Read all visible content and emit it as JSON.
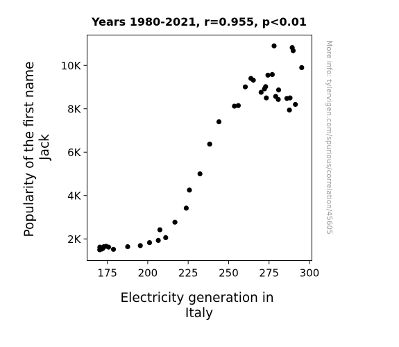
{
  "chart_data": {
    "type": "scatter",
    "title": "Years 1980-2021, r=0.955, p<0.01",
    "xlabel": [
      "Electricity generation in",
      "Italy"
    ],
    "ylabel": [
      "Popularity of the first name",
      "Jack"
    ],
    "watermark": "More info: tylervigen.com/spurious/correlation/45605",
    "xlim": [
      162.5,
      301.5
    ],
    "ylim": [
      1000,
      11400
    ],
    "x_ticks": [
      175,
      200,
      225,
      250,
      275,
      300
    ],
    "x_tick_labels": [
      "175",
      "200",
      "225",
      "250",
      "275",
      "300"
    ],
    "y_ticks": [
      2000,
      4000,
      6000,
      8000,
      10000
    ],
    "y_tick_labels": [
      "2K",
      "4K",
      "6K",
      "8K",
      "10K"
    ],
    "grid": false,
    "marker_color": "#000000",
    "points": [
      [
        170.3,
        1500
      ],
      [
        170.4,
        1620
      ],
      [
        171.5,
        1530
      ],
      [
        172.2,
        1560
      ],
      [
        172.8,
        1640
      ],
      [
        174.3,
        1660
      ],
      [
        175.8,
        1620
      ],
      [
        178.8,
        1520
      ],
      [
        187.6,
        1640
      ],
      [
        195.4,
        1690
      ],
      [
        201.1,
        1830
      ],
      [
        206.5,
        1930
      ],
      [
        207.5,
        2420
      ],
      [
        211.1,
        2060
      ],
      [
        216.8,
        2770
      ],
      [
        223.8,
        3420
      ],
      [
        225.8,
        4250
      ],
      [
        232.3,
        5000
      ],
      [
        238.3,
        6370
      ],
      [
        244.0,
        7400
      ],
      [
        253.6,
        8120
      ],
      [
        256.0,
        8150
      ],
      [
        260.3,
        9010
      ],
      [
        263.8,
        9400
      ],
      [
        265.3,
        9320
      ],
      [
        270.1,
        8760
      ],
      [
        272.2,
        8920
      ],
      [
        272.9,
        9020
      ],
      [
        273.3,
        8500
      ],
      [
        274.3,
        9550
      ],
      [
        277.0,
        9580
      ],
      [
        278.1,
        10900
      ],
      [
        279.1,
        8570
      ],
      [
        280.7,
        8430
      ],
      [
        280.9,
        8870
      ],
      [
        286.0,
        8480
      ],
      [
        287.6,
        7940
      ],
      [
        288.0,
        8500
      ],
      [
        289.3,
        10820
      ],
      [
        289.9,
        10680
      ],
      [
        291.3,
        8200
      ],
      [
        295.2,
        9900
      ]
    ]
  }
}
